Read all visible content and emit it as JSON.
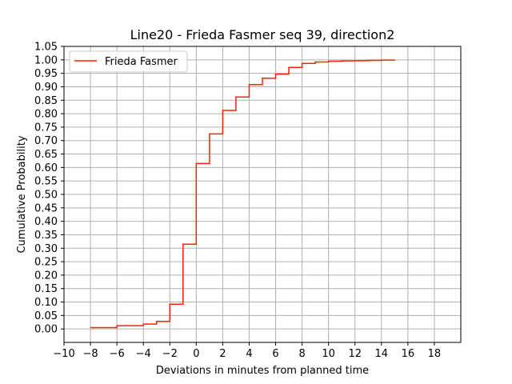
{
  "chart_data": {
    "type": "line",
    "drawstyle": "steps-post",
    "title": "Line20 - Frieda Fasmer seq 39, direction2",
    "xlabel": "Deviations in minutes from planned time",
    "ylabel": "Cumulative Probability",
    "xlim": [
      -10,
      20
    ],
    "ylim": [
      -0.05,
      1.05
    ],
    "xticks": [
      -10,
      -8,
      -6,
      -4,
      -2,
      0,
      2,
      4,
      6,
      8,
      10,
      12,
      14,
      16,
      18
    ],
    "xtick_labels": [
      "−10",
      "−8",
      "−6",
      "−4",
      "−2",
      "0",
      "2",
      "4",
      "6",
      "8",
      "10",
      "12",
      "14",
      "16",
      "18"
    ],
    "yticks": [
      0.0,
      0.05,
      0.1,
      0.15,
      0.2,
      0.25,
      0.3,
      0.35,
      0.4,
      0.45,
      0.5,
      0.55,
      0.6,
      0.65,
      0.7,
      0.75,
      0.8,
      0.85,
      0.9,
      0.95,
      1.0,
      1.05
    ],
    "ytick_labels": [
      "0.00",
      "0.05",
      "0.10",
      "0.15",
      "0.20",
      "0.25",
      "0.30",
      "0.35",
      "0.40",
      "0.45",
      "0.50",
      "0.55",
      "0.60",
      "0.65",
      "0.70",
      "0.75",
      "0.80",
      "0.85",
      "0.90",
      "0.95",
      "1.00",
      "1.05"
    ],
    "grid": true,
    "legend_position": "top-left",
    "series": [
      {
        "name": "Frieda Fasmer",
        "color": "#ff2200",
        "x": [
          -8,
          -6,
          -4,
          -3,
          -2,
          -1,
          0,
          1,
          2,
          3,
          4,
          5,
          6,
          7,
          8,
          9,
          10,
          11,
          12,
          13,
          14,
          15
        ],
        "y": [
          0.005,
          0.012,
          0.018,
          0.028,
          0.092,
          0.315,
          0.615,
          0.725,
          0.812,
          0.862,
          0.908,
          0.932,
          0.947,
          0.972,
          0.987,
          0.992,
          0.995,
          0.996,
          0.997,
          0.998,
          0.999,
          1.0
        ]
      }
    ]
  }
}
